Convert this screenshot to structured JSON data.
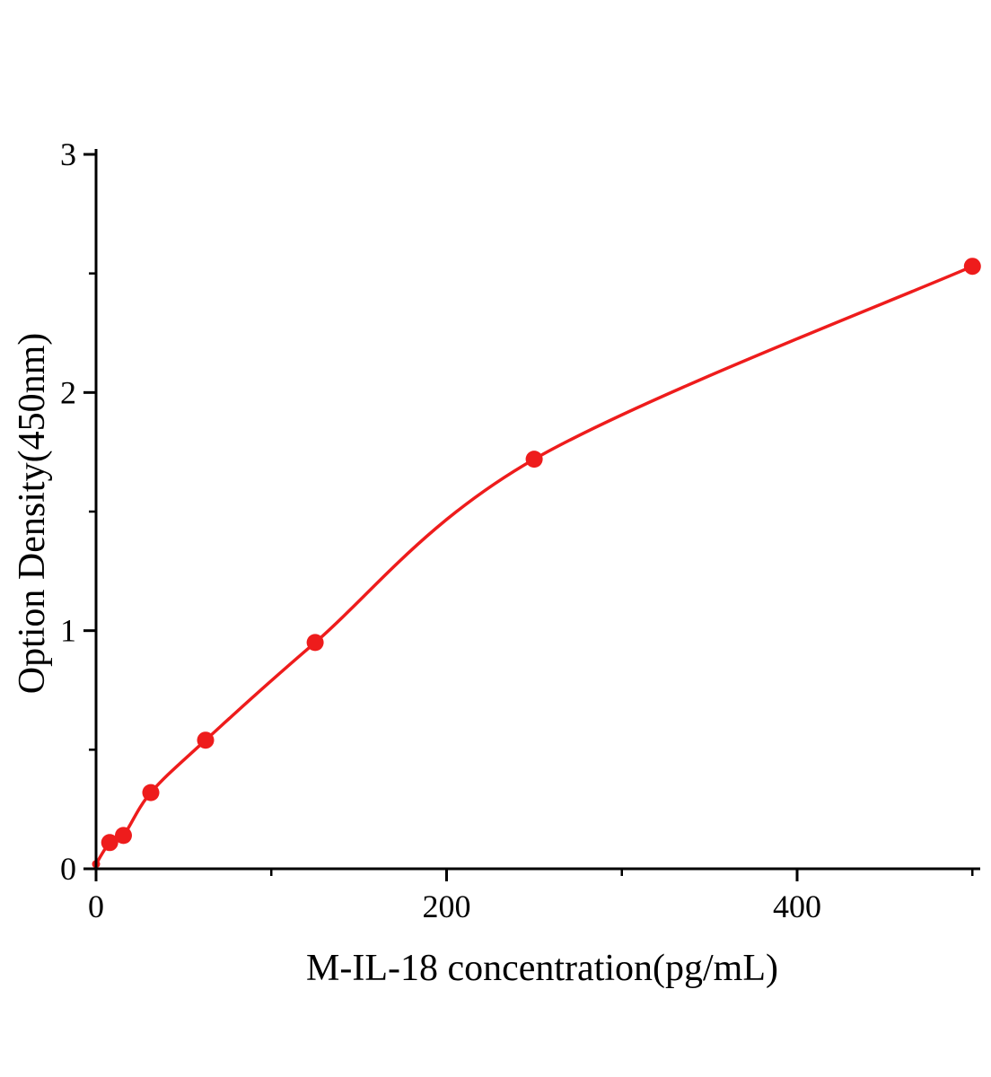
{
  "figure": {
    "background": "#ffffff"
  },
  "chart_data": {
    "type": "scatter",
    "title": "",
    "xlabel": "M-IL-18 concentration(pg/mL)",
    "ylabel": "Option Density(450nm)",
    "x": [
      0,
      7.8,
      15.6,
      31.25,
      62.5,
      125,
      250,
      500
    ],
    "y": [
      0.02,
      0.11,
      0.14,
      0.32,
      0.54,
      0.95,
      1.72,
      2.53
    ],
    "curve": "smooth-fit-through-points",
    "xlim": [
      0,
      500
    ],
    "ylim": [
      0,
      3
    ],
    "x_major_ticks": [
      0,
      200,
      400
    ],
    "x_minor_ticks": [
      100,
      300,
      500
    ],
    "y_major_ticks": [
      0,
      1,
      2,
      3
    ],
    "y_minor_ticks": [
      0.5,
      1.5,
      2.5
    ],
    "grid": false,
    "legend": "none",
    "line_color": "#ee1c1c",
    "marker_color": "#ee1c1c",
    "axis_color": "#000000",
    "marker_size": 9.5
  }
}
